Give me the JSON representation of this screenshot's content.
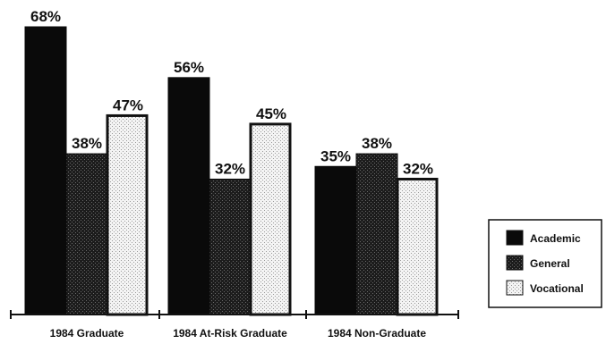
{
  "chart_data": {
    "type": "bar",
    "categories": [
      "1984 Graduate",
      "1984 At-Risk Graduate",
      "1984 Non-Graduate"
    ],
    "series": [
      {
        "name": "Academic",
        "values": [
          68,
          56,
          35
        ]
      },
      {
        "name": "General",
        "values": [
          38,
          32,
          38
        ]
      },
      {
        "name": "Vocational",
        "values": [
          47,
          45,
          32
        ]
      }
    ],
    "value_labels": [
      [
        "68%",
        "38%",
        "47%"
      ],
      [
        "56%",
        "32%",
        "45%"
      ],
      [
        "35%",
        "38%",
        "32%"
      ]
    ],
    "ylim": [
      0,
      68
    ],
    "grid": false,
    "legend_position": "right",
    "colors": {
      "Academic": "#0a0a0a",
      "General": "#1c1c1c",
      "Vocational": "#f4f4f4"
    }
  }
}
